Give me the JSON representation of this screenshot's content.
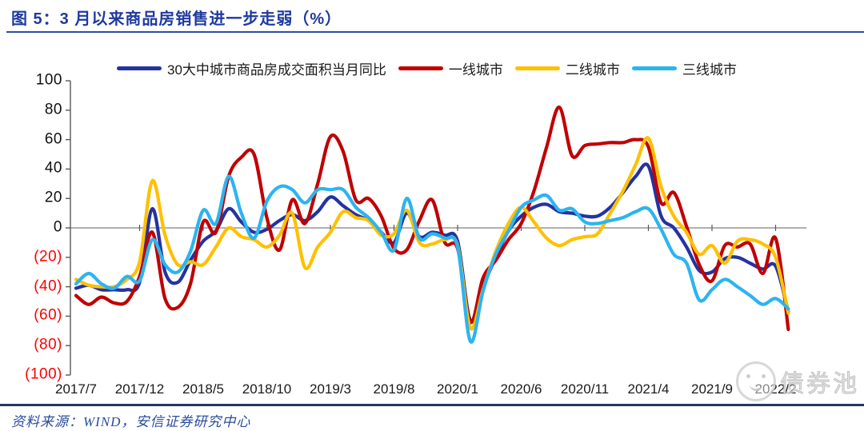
{
  "figure": {
    "title": "图 5：3 月以来商品房销售进一步走弱（%）"
  },
  "source": {
    "text": "资料来源：WIND，安信证券研究中心"
  },
  "watermark": {
    "text": "债券池"
  },
  "chart_data": {
    "type": "line",
    "title": "图 5：3 月以来商品房销售进一步走弱（%）",
    "xlabel": "",
    "ylabel": "",
    "ylim": [
      -100,
      100
    ],
    "grid": false,
    "legend_position": "top",
    "x": [
      "2017/7",
      "2017/8",
      "2017/9",
      "2017/10",
      "2017/11",
      "2017/12",
      "2018/1",
      "2018/2",
      "2018/3",
      "2018/4",
      "2018/5",
      "2018/6",
      "2018/7",
      "2018/8",
      "2018/9",
      "2018/10",
      "2018/11",
      "2018/12",
      "2019/1",
      "2019/2",
      "2019/3",
      "2019/4",
      "2019/5",
      "2019/6",
      "2019/7",
      "2019/8",
      "2019/9",
      "2019/10",
      "2019/11",
      "2019/12",
      "2020/1",
      "2020/2",
      "2020/3",
      "2020/4",
      "2020/5",
      "2020/6",
      "2020/7",
      "2020/8",
      "2020/9",
      "2020/10",
      "2020/11",
      "2020/12",
      "2021/1",
      "2021/2",
      "2021/3",
      "2021/4",
      "2021/5",
      "2021/6",
      "2021/7",
      "2021/8",
      "2021/9",
      "2021/10",
      "2021/11",
      "2021/12",
      "2022/1",
      "2022/2",
      "2022/3"
    ],
    "x_ticks": [
      {
        "index": 0,
        "label": "2017/7"
      },
      {
        "index": 5,
        "label": "2017/12"
      },
      {
        "index": 10,
        "label": "2018/5"
      },
      {
        "index": 15,
        "label": "2018/10"
      },
      {
        "index": 20,
        "label": "2019/3"
      },
      {
        "index": 25,
        "label": "2019/8"
      },
      {
        "index": 30,
        "label": "2020/1"
      },
      {
        "index": 35,
        "label": "2020/6"
      },
      {
        "index": 40,
        "label": "2020/11"
      },
      {
        "index": 45,
        "label": "2021/4"
      },
      {
        "index": 50,
        "label": "2021/9"
      },
      {
        "index": 55,
        "label": "2022/2"
      }
    ],
    "y_axis": {
      "positive_color": "#111111",
      "negative_color": "#FE0000",
      "ticks": [
        {
          "value": 100,
          "label": "100"
        },
        {
          "value": 80,
          "label": "80"
        },
        {
          "value": 60,
          "label": "60"
        },
        {
          "value": 40,
          "label": "40"
        },
        {
          "value": 20,
          "label": "20"
        },
        {
          "value": 0,
          "label": "0"
        },
        {
          "value": -20,
          "label": "(20)"
        },
        {
          "value": -40,
          "label": "(40)"
        },
        {
          "value": -60,
          "label": "(60)"
        },
        {
          "value": -80,
          "label": "(80)"
        },
        {
          "value": -100,
          "label": "(100)"
        }
      ]
    },
    "series": [
      {
        "name": "30大中城市商品房成交面积当月同比",
        "color": "#2433A0",
        "values": [
          -41,
          -39,
          -42,
          -42,
          -42,
          -37,
          13,
          -30,
          -37,
          -22,
          -9,
          -2,
          13,
          4,
          -3,
          -1,
          5,
          9,
          5,
          11,
          21,
          15,
          9,
          5,
          -3,
          -10,
          10,
          -6,
          -3,
          -5,
          -9,
          -63,
          -40,
          -20,
          -2,
          8,
          14,
          16,
          11,
          10,
          8,
          8,
          14,
          24,
          35,
          42,
          8,
          0,
          -13,
          -29,
          -30,
          -21,
          -20,
          -24,
          -28,
          -26,
          -57
        ]
      },
      {
        "name": "一线城市",
        "color": "#C00000",
        "values": [
          -46,
          -52,
          -47,
          -51,
          -50,
          -33,
          -3,
          -48,
          -54,
          -38,
          4,
          -3,
          35,
          48,
          50,
          7,
          -15,
          19,
          3,
          30,
          62,
          52,
          19,
          20,
          8,
          -14,
          -15,
          5,
          19,
          -10,
          -14,
          -64,
          -34,
          -22,
          -8,
          3,
          25,
          55,
          82,
          49,
          56,
          57,
          58,
          58,
          60,
          55,
          17,
          24,
          1,
          -25,
          -36,
          -12,
          -13,
          -11,
          -31,
          -7,
          -69
        ]
      },
      {
        "name": "二线城市",
        "color": "#FFC000",
        "values": [
          -35,
          -39,
          -40,
          -40,
          -35,
          -23,
          32,
          -5,
          -25,
          -23,
          -25,
          -13,
          0,
          -6,
          -8,
          -13,
          -5,
          10,
          -27,
          -13,
          -3,
          11,
          7,
          5,
          -5,
          -4,
          12,
          -10,
          -11,
          -8,
          -12,
          -68,
          -42,
          -16,
          3,
          14,
          4,
          -7,
          -12,
          -8,
          -6,
          -4,
          10,
          25,
          43,
          61,
          28,
          8,
          -3,
          -18,
          -12,
          -24,
          -9,
          -8,
          -11,
          -20,
          -58
        ]
      },
      {
        "name": "三线城市",
        "color": "#2CB4F0",
        "values": [
          -38,
          -31,
          -38,
          -41,
          -33,
          -36,
          -8,
          -25,
          -30,
          -16,
          12,
          3,
          35,
          10,
          -7,
          18,
          28,
          26,
          17,
          26,
          26,
          26,
          14,
          7,
          -3,
          -15,
          20,
          -7,
          -4,
          -7,
          -13,
          -77,
          -43,
          -18,
          -2,
          14,
          19,
          22,
          12,
          13,
          4,
          3,
          5,
          7,
          11,
          13,
          -1,
          -18,
          -24,
          -49,
          -42,
          -35,
          -40,
          -46,
          -52,
          -48,
          -55
        ]
      }
    ]
  }
}
